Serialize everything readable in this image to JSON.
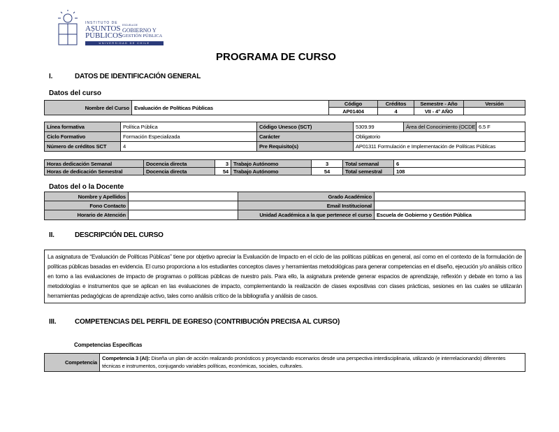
{
  "logo": {
    "line1": "INSTITUTO DE",
    "line2": "ASUNTOS",
    "line3": "PÚBLICOS",
    "school_small": "ESCUELA DE",
    "school1": "GOBIERNO Y",
    "school2": "GESTIÓN PÚBLICA",
    "university": "UNIVERSIDAD DE CHILE"
  },
  "title": "PROGRAMA DE CURSO",
  "section1": {
    "number": "I.",
    "heading": "DATOS DE IDENTIFICACIÓN GENERAL",
    "course_subheading": "Datos del curso",
    "course": {
      "name_label": "Nombre del Curso",
      "name_value": "Evaluación de Políticas Públicas",
      "code_label": "Código",
      "code_value": "AP01404",
      "credits_label": "Créditos",
      "credits_value": "4",
      "semester_label": "Semestre - Año",
      "semester_value": "VII - 4° AÑO",
      "version_label": "Versión",
      "version_value": ""
    },
    "details": {
      "linea_label": "Línea formativa",
      "linea_value": "Política Pública",
      "unesco_label": "Código Unesco (SCT)",
      "unesco_value": "5309.99",
      "area_label": "Área del Conocimiento (OCDE)",
      "area_value": "6.5 F",
      "ciclo_label": "Ciclo Formativo",
      "ciclo_value": "Formación Especializada",
      "caracter_label": "Carácter",
      "caracter_value": "Obligatorio",
      "sct_label": "Número de créditos SCT",
      "sct_value": "4",
      "prereq_label": "Pre Requisito(s)",
      "prereq_value": "AP01311 Formulación e Implementación de Políticas Públicas"
    },
    "hours": [
      {
        "label": "Horas dedicación Semanal",
        "direct_label": "Docencia directa",
        "direct_value": "3",
        "auto_label": "Trabajo Autónomo",
        "auto_value": "3",
        "total_label": "Total semanal",
        "total_value": "6"
      },
      {
        "label": "Horas de dedicación Semestral",
        "direct_label": "Docencia directa",
        "direct_value": "54",
        "auto_label": "Trabajo Autónomo",
        "auto_value": "54",
        "total_label": "Total semestral",
        "total_value": "108"
      }
    ],
    "teacher_subheading": "Datos del o la Docente",
    "teacher": {
      "name_label": "Nombre y Apellidos",
      "name_value": "",
      "degree_label": "Grado Académico",
      "degree_value": "",
      "phone_label": "Fono Contacto",
      "phone_value": "",
      "email_label": "Email Institucional",
      "email_value": "",
      "hours_label": "Horario de Atención",
      "hours_value": "",
      "unit_label": "Unidad Académica a la que pertenece el curso",
      "unit_value": "Escuela de Gobierno y Gestión Pública"
    }
  },
  "section2": {
    "number": "II.",
    "heading": "DESCRIPCIÓN DEL CURSO",
    "description": "La asignatura de “Evaluación de Políticas Públicas” tiene por objetivo apreciar la Evaluación de Impacto en el ciclo de las políticas públicas en general, así como en el contexto de la formulación de políticas públicas basadas en evidencia. El curso proporciona a los estudiantes conceptos claves y herramientas metodológicas para generar competencias en el diseño, ejecución y/o análisis crítico en torno a las evaluaciones de impacto de programas o políticas públicas de nuestro país. Para ello, la asignatura pretende generar espacios de aprendizaje, reflexión y debate en torno a las metodologías e instrumentos que se aplican en las evaluaciones de impacto, complementando la realización de clases expositivas con clases prácticas, sesiones en las cuales se utilizarán herramientas pedagógicas de aprendizaje activo, tales como análisis crítico de la bibliografía y análisis de casos."
  },
  "section3": {
    "number": "III.",
    "heading": "COMPETENCIAS DEL PERFIL DE EGRESO (CONTRIBUCIÓN PRECISA AL CURSO)",
    "subheading": "Competencias Específicas",
    "competencia_label": "Competencia",
    "competencia_title": "Competencia 3 (AI):",
    "competencia_text": " Diseña un plan de acción realizando pronósticos y proyectando escenarios desde una perspectiva interdisciplinaria, utilizando (e interrelacionando) diferentes técnicas e instrumentos, conjugando variables políticas, económicas, sociales, culturales."
  }
}
